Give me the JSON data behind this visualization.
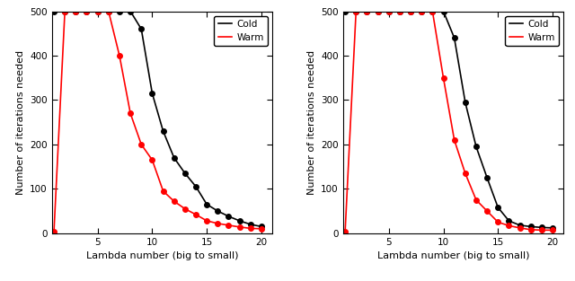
{
  "left_plot": {
    "cold_x": [
      1,
      2,
      3,
      4,
      5,
      6,
      7,
      8,
      9,
      10,
      11,
      12,
      13,
      14,
      15,
      16,
      17,
      18,
      19,
      20
    ],
    "cold_y": [
      500,
      500,
      500,
      500,
      500,
      500,
      500,
      500,
      460,
      315,
      230,
      170,
      135,
      105,
      65,
      50,
      38,
      28,
      20,
      15
    ],
    "warm_x": [
      1,
      2,
      3,
      4,
      5,
      6,
      7,
      8,
      9,
      10,
      11,
      12,
      13,
      14,
      15,
      16,
      17,
      18,
      19,
      20
    ],
    "warm_y": [
      3,
      500,
      500,
      500,
      500,
      500,
      400,
      270,
      200,
      165,
      95,
      72,
      55,
      42,
      28,
      22,
      18,
      14,
      11,
      10
    ]
  },
  "right_plot": {
    "cold_x": [
      1,
      2,
      3,
      4,
      5,
      6,
      7,
      8,
      9,
      10,
      11,
      12,
      13,
      14,
      15,
      16,
      17,
      18,
      19,
      20
    ],
    "cold_y": [
      500,
      500,
      500,
      500,
      500,
      500,
      500,
      500,
      500,
      500,
      440,
      295,
      195,
      125,
      58,
      28,
      18,
      15,
      13,
      12
    ],
    "warm_x": [
      1,
      2,
      3,
      4,
      5,
      6,
      7,
      8,
      9,
      10,
      11,
      12,
      13,
      14,
      15,
      16,
      17,
      18,
      19,
      20
    ],
    "warm_y": [
      3,
      500,
      500,
      500,
      500,
      500,
      500,
      500,
      500,
      350,
      210,
      135,
      75,
      50,
      25,
      17,
      12,
      8,
      7,
      7
    ]
  },
  "cold_color": "#000000",
  "warm_color": "#ff0000",
  "xlabel": "Lambda number (big to small)",
  "ylabel": "Number of iterations needed",
  "ylim": [
    0,
    500
  ],
  "xlim_left": [
    0.8,
    21
  ],
  "xlim_right": [
    0.8,
    21
  ],
  "yticks": [
    0,
    100,
    200,
    300,
    400,
    500
  ],
  "xticks": [
    5,
    10,
    15,
    20
  ],
  "marker": "o",
  "markersize": 4,
  "linewidth": 1.2,
  "legend_labels": [
    "Cold",
    "Warm"
  ],
  "bg_color": "#ffffff",
  "font_size_axis_label": 8,
  "font_size_tick": 7.5
}
